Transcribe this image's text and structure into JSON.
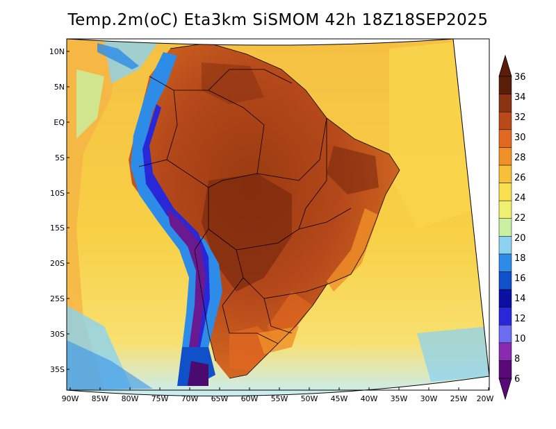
{
  "title": "Temp.2m(oC) Eta3km SiSMOM 42h 18Z18SEP2025",
  "map": {
    "variable": "2 m air temperature",
    "units": "oC",
    "region": "South America",
    "lat_labels": [
      "10N",
      "5N",
      "EQ",
      "5S",
      "10S",
      "15S",
      "20S",
      "25S",
      "30S",
      "35S"
    ],
    "lon_labels": [
      "90W",
      "85W",
      "80W",
      "75W",
      "70W",
      "65W",
      "60W",
      "55W",
      "50W",
      "45W",
      "40W",
      "35W",
      "30W",
      "25W",
      "20W"
    ]
  },
  "colorbar": {
    "labels": [
      "36",
      "34",
      "32",
      "30",
      "28",
      "26",
      "24",
      "22",
      "20",
      "18",
      "16",
      "14",
      "12",
      "10",
      "8",
      "6"
    ],
    "levels": [
      6,
      8,
      10,
      12,
      14,
      16,
      18,
      20,
      22,
      24,
      26,
      28,
      30,
      32,
      34,
      36
    ],
    "colors": [
      "#5a0a78",
      "#8a2ab0",
      "#6c6cf0",
      "#2828d8",
      "#0a10a0",
      "#1050c8",
      "#2c8ce8",
      "#8cd2f0",
      "#c8f0a0",
      "#f0f070",
      "#f8e050",
      "#f8c038",
      "#f09028",
      "#e06820",
      "#b84a1a",
      "#8a3412",
      "#5a1e08"
    ],
    "arrow_top_color": "#5a1e08",
    "arrow_bottom_color": "#5a0a78"
  }
}
